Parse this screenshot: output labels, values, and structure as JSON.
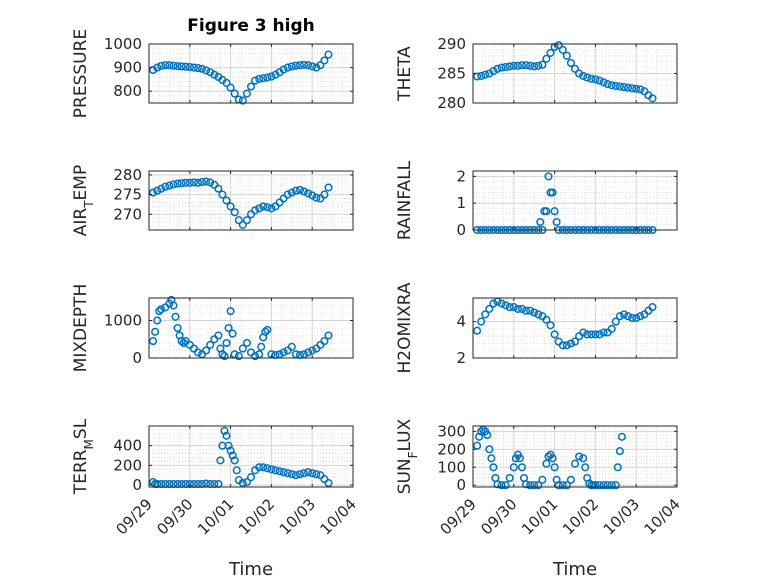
{
  "title": "Figure 3 high",
  "colors": {
    "marker": "#0072bd",
    "axis": "#262626",
    "grid": "#dcdcdc"
  },
  "chart_data": [
    {
      "type": "scatter",
      "title": "Figure 3 high",
      "ylabel": "PRESSURE",
      "xlabel": "",
      "ylim": [
        750,
        1000
      ],
      "yticks": [
        800,
        900,
        1000
      ],
      "xlim": [
        0,
        5
      ],
      "xticks": [
        0,
        1,
        2,
        3,
        4,
        5
      ],
      "xticklabels": [],
      "grid": true,
      "x": [
        0.1,
        0.2,
        0.3,
        0.4,
        0.5,
        0.6,
        0.7,
        0.8,
        0.9,
        1.0,
        1.1,
        1.2,
        1.3,
        1.4,
        1.5,
        1.6,
        1.7,
        1.8,
        1.9,
        2.0,
        2.1,
        2.2,
        2.3,
        2.4,
        2.5,
        2.6,
        2.7,
        2.8,
        2.9,
        3.0,
        3.1,
        3.2,
        3.3,
        3.4,
        3.5,
        3.6,
        3.7,
        3.8,
        3.9,
        4.0,
        4.1,
        4.2,
        4.3,
        4.4
      ],
      "y": [
        890,
        900,
        907,
        910,
        910,
        908,
        906,
        905,
        904,
        902,
        900,
        898,
        895,
        888,
        880,
        870,
        860,
        848,
        835,
        815,
        790,
        765,
        760,
        790,
        820,
        845,
        852,
        855,
        858,
        862,
        870,
        880,
        892,
        900,
        905,
        908,
        910,
        912,
        910,
        905,
        900,
        910,
        930,
        955
      ]
    },
    {
      "type": "scatter",
      "title": "",
      "ylabel": "THETA",
      "xlabel": "",
      "ylim": [
        280,
        290
      ],
      "yticks": [
        280,
        285,
        290
      ],
      "xlim": [
        0,
        5
      ],
      "xticks": [
        0,
        1,
        2,
        3,
        4,
        5
      ],
      "xticklabels": [],
      "grid": true,
      "x": [
        0.1,
        0.2,
        0.3,
        0.4,
        0.5,
        0.6,
        0.7,
        0.8,
        0.9,
        1.0,
        1.1,
        1.2,
        1.3,
        1.4,
        1.5,
        1.6,
        1.7,
        1.8,
        1.9,
        2.0,
        2.1,
        2.2,
        2.3,
        2.4,
        2.5,
        2.6,
        2.7,
        2.8,
        2.9,
        3.0,
        3.1,
        3.2,
        3.3,
        3.4,
        3.5,
        3.6,
        3.7,
        3.8,
        3.9,
        4.0,
        4.1,
        4.2,
        4.3,
        4.4
      ],
      "y": [
        284.5,
        284.6,
        284.8,
        285.0,
        285.4,
        285.8,
        286.0,
        286.1,
        286.2,
        286.3,
        286.3,
        286.4,
        286.4,
        286.3,
        286.2,
        286.3,
        286.5,
        287.5,
        288.5,
        289.5,
        289.8,
        289.0,
        288.0,
        286.8,
        285.8,
        285.0,
        284.6,
        284.3,
        284.1,
        284.0,
        283.8,
        283.5,
        283.2,
        283.0,
        282.9,
        282.8,
        282.7,
        282.6,
        282.5,
        282.4,
        282.3,
        282.0,
        281.3,
        280.8
      ]
    },
    {
      "type": "scatter",
      "title": "",
      "ylabel": "AIR_TEMP",
      "xlabel": "",
      "ylim": [
        266,
        281
      ],
      "yticks": [
        270,
        275,
        280
      ],
      "xlim": [
        0,
        5
      ],
      "xticks": [
        0,
        1,
        2,
        3,
        4,
        5
      ],
      "xticklabels": [],
      "grid": true,
      "x": [
        0.1,
        0.2,
        0.3,
        0.4,
        0.5,
        0.6,
        0.7,
        0.8,
        0.9,
        1.0,
        1.1,
        1.2,
        1.3,
        1.4,
        1.5,
        1.6,
        1.7,
        1.8,
        1.9,
        2.0,
        2.1,
        2.2,
        2.3,
        2.4,
        2.5,
        2.6,
        2.7,
        2.8,
        2.9,
        3.0,
        3.1,
        3.2,
        3.3,
        3.4,
        3.5,
        3.6,
        3.7,
        3.8,
        3.9,
        4.0,
        4.1,
        4.2,
        4.3,
        4.4
      ],
      "y": [
        275.5,
        276.0,
        276.5,
        277.0,
        277.3,
        277.6,
        277.8,
        277.9,
        278.0,
        278.0,
        278.1,
        278.0,
        278.2,
        278.3,
        278.1,
        277.5,
        276.5,
        275.0,
        273.5,
        272.0,
        270.5,
        268.5,
        267.3,
        268.5,
        270.0,
        271.0,
        271.5,
        272.0,
        271.8,
        271.5,
        272.0,
        273.0,
        274.0,
        275.0,
        275.5,
        276.0,
        276.2,
        275.8,
        275.3,
        274.8,
        274.2,
        274.0,
        275.0,
        276.8
      ]
    },
    {
      "type": "scatter",
      "title": "",
      "ylabel": "RAINFALL",
      "xlabel": "",
      "ylim": [
        0,
        2.2
      ],
      "yticks": [
        0,
        1,
        2
      ],
      "xlim": [
        0,
        5
      ],
      "xticks": [
        0,
        1,
        2,
        3,
        4,
        5
      ],
      "xticklabels": [],
      "grid": true,
      "x": [
        0.1,
        0.2,
        0.3,
        0.4,
        0.5,
        0.6,
        0.7,
        0.8,
        0.9,
        1.0,
        1.1,
        1.2,
        1.3,
        1.4,
        1.5,
        1.6,
        1.65,
        1.7,
        1.75,
        1.8,
        1.85,
        1.9,
        1.95,
        2.0,
        2.05,
        2.1,
        2.2,
        2.3,
        2.4,
        2.5,
        2.6,
        2.7,
        2.8,
        2.9,
        3.0,
        3.1,
        3.2,
        3.3,
        3.4,
        3.5,
        3.6,
        3.7,
        3.8,
        3.9,
        4.0,
        4.1,
        4.2,
        4.3,
        4.4
      ],
      "y": [
        0,
        0,
        0,
        0,
        0,
        0,
        0,
        0,
        0,
        0,
        0,
        0,
        0,
        0,
        0,
        0,
        0.3,
        0,
        0.7,
        0.7,
        2.0,
        1.4,
        1.4,
        0.7,
        0.3,
        0,
        0,
        0,
        0,
        0,
        0,
        0,
        0,
        0,
        0,
        0,
        0,
        0,
        0,
        0,
        0,
        0,
        0,
        0,
        0,
        0,
        0,
        0,
        0
      ]
    },
    {
      "type": "scatter",
      "title": "",
      "ylabel": "MIXDEPTH",
      "xlabel": "",
      "ylim": [
        0,
        1600
      ],
      "yticks": [
        0,
        1000
      ],
      "xlim": [
        0,
        5
      ],
      "xticks": [
        0,
        1,
        2,
        3,
        4,
        5
      ],
      "xticklabels": [],
      "grid": true,
      "x": [
        0.1,
        0.15,
        0.2,
        0.25,
        0.3,
        0.4,
        0.5,
        0.55,
        0.6,
        0.65,
        0.7,
        0.75,
        0.8,
        0.85,
        0.9,
        1.0,
        1.1,
        1.2,
        1.3,
        1.4,
        1.5,
        1.6,
        1.7,
        1.75,
        1.8,
        1.85,
        1.9,
        1.95,
        2.0,
        2.05,
        2.1,
        2.2,
        2.3,
        2.4,
        2.5,
        2.6,
        2.7,
        2.75,
        2.8,
        2.85,
        2.9,
        3.0,
        3.1,
        3.2,
        3.3,
        3.4,
        3.5,
        3.6,
        3.7,
        3.8,
        3.9,
        4.0,
        4.1,
        4.2,
        4.3,
        4.4
      ],
      "y": [
        450,
        700,
        1000,
        1250,
        1300,
        1350,
        1450,
        1550,
        1400,
        1100,
        800,
        600,
        450,
        400,
        450,
        350,
        250,
        150,
        100,
        200,
        350,
        500,
        600,
        250,
        100,
        50,
        400,
        800,
        1250,
        650,
        100,
        50,
        250,
        400,
        150,
        50,
        100,
        300,
        550,
        700,
        750,
        100,
        80,
        100,
        150,
        200,
        300,
        100,
        80,
        100,
        150,
        200,
        250,
        350,
        450,
        600
      ]
    },
    {
      "type": "scatter",
      "title": "",
      "ylabel": "H2OMIXRA",
      "xlabel": "",
      "ylim": [
        2,
        5.3
      ],
      "yticks": [
        2,
        4
      ],
      "xlim": [
        0,
        5
      ],
      "xticks": [
        0,
        1,
        2,
        3,
        4,
        5
      ],
      "xticklabels": [],
      "grid": true,
      "x": [
        0.1,
        0.2,
        0.3,
        0.4,
        0.5,
        0.6,
        0.7,
        0.8,
        0.9,
        1.0,
        1.1,
        1.2,
        1.3,
        1.4,
        1.5,
        1.6,
        1.7,
        1.8,
        1.9,
        2.0,
        2.1,
        2.2,
        2.3,
        2.4,
        2.5,
        2.6,
        2.7,
        2.8,
        2.9,
        3.0,
        3.1,
        3.2,
        3.3,
        3.4,
        3.5,
        3.6,
        3.7,
        3.8,
        3.9,
        4.0,
        4.1,
        4.2,
        4.3,
        4.4
      ],
      "y": [
        3.5,
        4.0,
        4.4,
        4.7,
        5.0,
        5.1,
        5.0,
        4.9,
        4.8,
        4.8,
        4.7,
        4.7,
        4.6,
        4.6,
        4.5,
        4.4,
        4.3,
        4.1,
        3.8,
        3.3,
        2.9,
        2.7,
        2.7,
        2.8,
        2.9,
        3.2,
        3.4,
        3.3,
        3.3,
        3.3,
        3.3,
        3.4,
        3.4,
        3.6,
        4.0,
        4.3,
        4.4,
        4.3,
        4.2,
        4.2,
        4.3,
        4.4,
        4.6,
        4.8
      ]
    },
    {
      "type": "scatter",
      "title": "",
      "ylabel": "TERR_MSL",
      "xlabel": "Time",
      "ylim": [
        -20,
        600
      ],
      "yticks": [
        0,
        200,
        400
      ],
      "xlim": [
        0,
        5
      ],
      "xticks": [
        0,
        1,
        2,
        3,
        4,
        5
      ],
      "xticklabels": [
        "09/29",
        "09/30",
        "10/01",
        "10/02",
        "10/03",
        "10/04"
      ],
      "grid": true,
      "x": [
        0.1,
        0.15,
        0.2,
        0.3,
        0.4,
        0.5,
        0.6,
        0.7,
        0.8,
        0.9,
        1.0,
        1.1,
        1.2,
        1.3,
        1.4,
        1.5,
        1.6,
        1.7,
        1.75,
        1.8,
        1.85,
        1.9,
        1.95,
        2.0,
        2.05,
        2.1,
        2.15,
        2.2,
        2.3,
        2.4,
        2.5,
        2.6,
        2.7,
        2.8,
        2.9,
        3.0,
        3.1,
        3.2,
        3.3,
        3.4,
        3.5,
        3.6,
        3.7,
        3.8,
        3.9,
        4.0,
        4.1,
        4.2,
        4.3,
        4.4
      ],
      "y": [
        30,
        10,
        10,
        10,
        10,
        10,
        10,
        10,
        10,
        10,
        10,
        10,
        10,
        10,
        15,
        10,
        10,
        10,
        250,
        400,
        550,
        500,
        400,
        350,
        300,
        250,
        150,
        50,
        20,
        30,
        80,
        150,
        180,
        180,
        170,
        160,
        150,
        140,
        130,
        120,
        110,
        100,
        110,
        120,
        130,
        120,
        110,
        100,
        60,
        20
      ]
    },
    {
      "type": "scatter",
      "title": "",
      "ylabel": "SUN_FLUX",
      "xlabel": "Time",
      "ylim": [
        -10,
        330
      ],
      "yticks": [
        0,
        100,
        200,
        300
      ],
      "xlim": [
        0,
        5
      ],
      "xticks": [
        0,
        1,
        2,
        3,
        4,
        5
      ],
      "xticklabels": [
        "09/29",
        "09/30",
        "10/01",
        "10/02",
        "10/03",
        "10/04"
      ],
      "grid": true,
      "x": [
        0.1,
        0.15,
        0.2,
        0.25,
        0.3,
        0.35,
        0.4,
        0.45,
        0.5,
        0.55,
        0.6,
        0.7,
        0.8,
        0.9,
        1.0,
        1.05,
        1.1,
        1.15,
        1.2,
        1.25,
        1.3,
        1.4,
        1.5,
        1.6,
        1.7,
        1.8,
        1.85,
        1.9,
        1.95,
        2.0,
        2.05,
        2.1,
        2.2,
        2.3,
        2.4,
        2.5,
        2.6,
        2.7,
        2.75,
        2.8,
        2.85,
        2.9,
        2.95,
        3.0,
        3.1,
        3.2,
        3.3,
        3.4,
        3.5,
        3.55,
        3.6,
        3.65
      ],
      "y": [
        220,
        270,
        300,
        310,
        300,
        280,
        200,
        150,
        100,
        40,
        5,
        0,
        0,
        40,
        100,
        150,
        170,
        150,
        100,
        40,
        5,
        0,
        0,
        0,
        30,
        120,
        160,
        170,
        150,
        100,
        30,
        0,
        0,
        0,
        30,
        120,
        160,
        150,
        100,
        40,
        10,
        0,
        0,
        0,
        0,
        0,
        0,
        0,
        0,
        100,
        190,
        270
      ]
    }
  ]
}
